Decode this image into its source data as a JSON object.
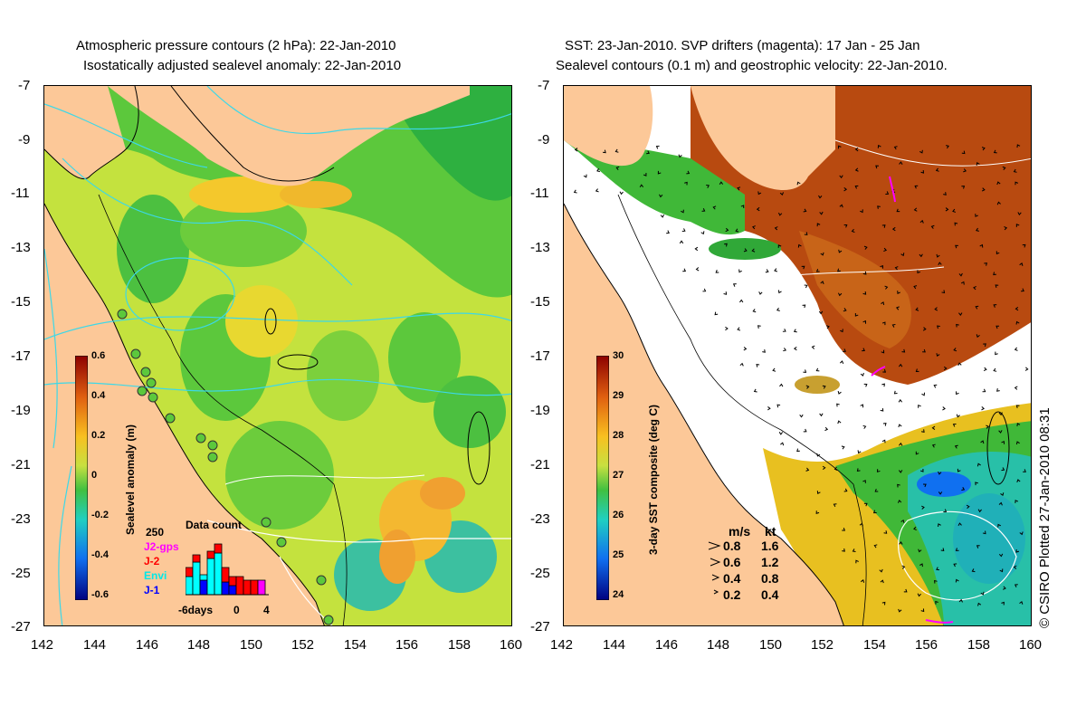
{
  "left_panel": {
    "title_line1": "Atmospheric pressure contours (2 hPa): 22-Jan-2010",
    "title_line2": "Isostatically adjusted sealevel anomaly: 22-Jan-2010",
    "colorbar": {
      "label": "Sealevel anomaly (m)",
      "ticks": [
        "0.6",
        "0.4",
        "0.2",
        "0",
        "-0.2",
        "-0.4",
        "-0.6"
      ]
    },
    "data_count": {
      "title": "Data count",
      "ymax": "250",
      "series": [
        {
          "name": "J2-gps",
          "color": "#ff00ff"
        },
        {
          "name": "J-2",
          "color": "#ff0000"
        },
        {
          "name": "Envi",
          "color": "#00ffff"
        },
        {
          "name": "J-1",
          "color": "#0000ff"
        }
      ],
      "xlabels": [
        "-6days",
        "0",
        "4"
      ]
    }
  },
  "right_panel": {
    "title_line1": "SST: 23-Jan-2010. SVP drifters (magenta): 17 Jan - 25 Jan",
    "title_line2": "Sealevel contours (0.1 m) and geostrophic velocity: 22-Jan-2010.",
    "colorbar": {
      "label": "3-day SST composite (deg C)",
      "ticks": [
        "30",
        "29",
        "28",
        "27",
        "26",
        "25",
        "24"
      ]
    },
    "velocity_legend": {
      "header_ms": "m/s",
      "header_kt": "kt",
      "rows": [
        {
          "ms": "0.8",
          "kt": "1.6"
        },
        {
          "ms": "0.6",
          "kt": "1.2"
        },
        {
          "ms": "0.4",
          "kt": "0.8"
        },
        {
          "ms": "0.2",
          "kt": "0.4"
        }
      ]
    }
  },
  "axes": {
    "lat_ticks": [
      "-7",
      "-9",
      "-11",
      "-13",
      "-15",
      "-17",
      "-19",
      "-21",
      "-23",
      "-25",
      "-27"
    ],
    "lon_ticks": [
      "142",
      "144",
      "146",
      "148",
      "150",
      "152",
      "154",
      "156",
      "158",
      "160"
    ]
  },
  "copyright": "© CSIRO Plotted 27-Jan-2010 08:31",
  "colors": {
    "land": "#fcc898",
    "ocean_green": "#5cc83c",
    "ocean_yellow": "#c8e43c",
    "sst_warm": "#b84a10",
    "sst_cloud": "#ffffff",
    "contour_cyan": "#3cd8e8"
  }
}
